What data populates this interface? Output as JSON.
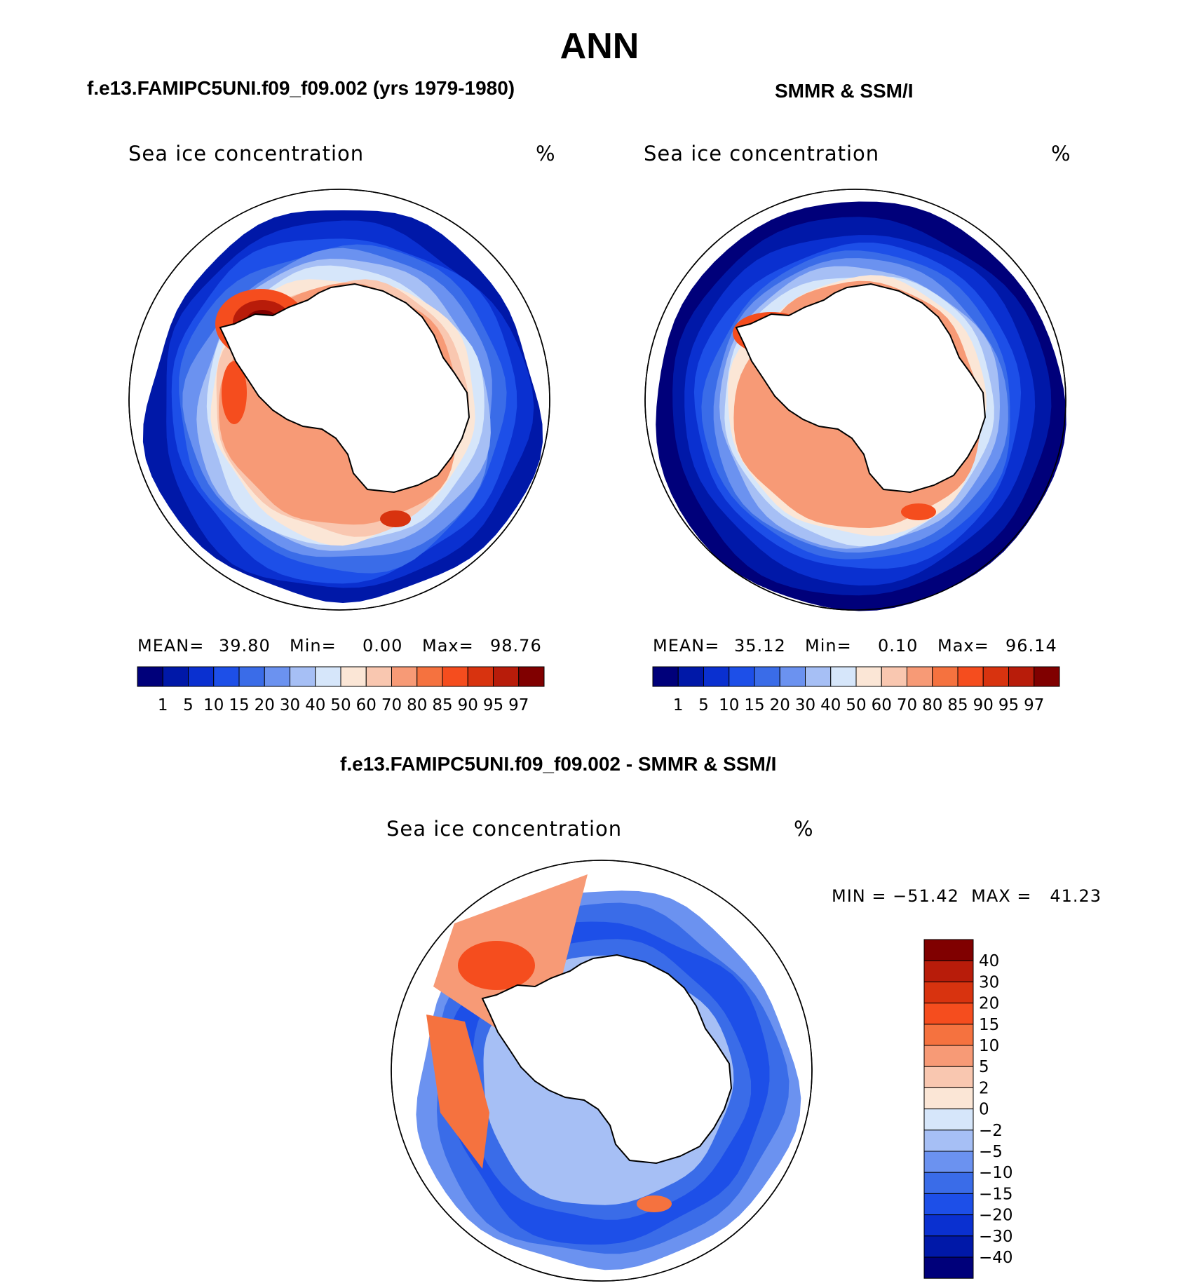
{
  "chart_data": {
    "type": "contour-map",
    "title": "ANN",
    "panels": [
      {
        "id": "model",
        "heading": "f.e13.FAMIPC5UNI.f09_f09.002 (yrs 1979-1980)",
        "field": "Sea ice concentration",
        "units": "%",
        "mean_label": "MEAN=",
        "mean": "39.80",
        "min_label": "Min=",
        "min": "0.00",
        "max_label": "Max=",
        "max": "98.76",
        "levels": [
          "1",
          "5",
          "10",
          "15",
          "20",
          "30",
          "40",
          "50",
          "60",
          "70",
          "80",
          "85",
          "90",
          "95",
          "97"
        ]
      },
      {
        "id": "obs",
        "heading": "SMMR & SSM/I",
        "field": "Sea ice concentration",
        "units": "%",
        "mean_label": "MEAN=",
        "mean": "35.12",
        "min_label": "Min=",
        "min": "0.10",
        "max_label": "Max=",
        "max": "96.14",
        "levels": [
          "1",
          "5",
          "10",
          "15",
          "20",
          "30",
          "40",
          "50",
          "60",
          "70",
          "80",
          "85",
          "90",
          "95",
          "97"
        ]
      },
      {
        "id": "diff",
        "heading": "f.e13.FAMIPC5UNI.f09_f09.002 - SMMR & SSM/I",
        "field": "Sea ice concentration",
        "units": "%",
        "minmax_text": "MIN = −51.42  MAX =   41.23",
        "min": -51.42,
        "max": 41.23,
        "levels": [
          "40",
          "30",
          "20",
          "15",
          "10",
          "5",
          "2",
          "0",
          "−2",
          "−5",
          "−10",
          "−15",
          "−20",
          "−30",
          "−40"
        ]
      }
    ],
    "colors": [
      "#00007a",
      "#0018a8",
      "#0a30d0",
      "#1d4fe8",
      "#3a6ce8",
      "#6b92f0",
      "#a6bff5",
      "#d6e6fa",
      "#fbe6d6",
      "#f9c7b0",
      "#f79a76",
      "#f5723f",
      "#f54d1e",
      "#d8330f",
      "#b81c0a",
      "#800000"
    ]
  }
}
